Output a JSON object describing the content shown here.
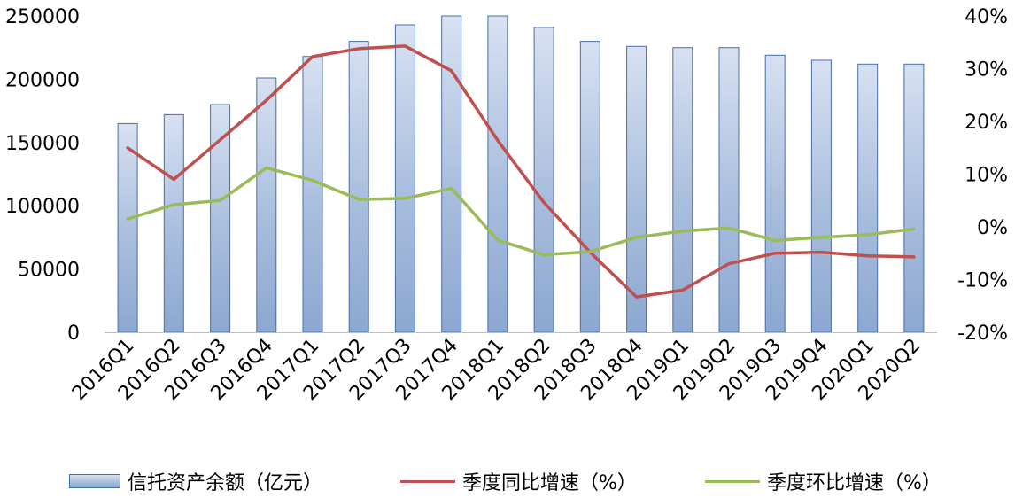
{
  "chart_data": {
    "type": "bar+line",
    "categories": [
      "2016Q1",
      "2016Q2",
      "2016Q3",
      "2016Q4",
      "2017Q1",
      "2017Q2",
      "2017Q3",
      "2017Q4",
      "2018Q1",
      "2018Q2",
      "2018Q3",
      "2018Q4",
      "2019Q1",
      "2019Q2",
      "2019Q3",
      "2019Q4",
      "2020Q1",
      "2020Q2"
    ],
    "series": [
      {
        "name": "信托资产余额（亿元）",
        "type": "bar",
        "axis": "left",
        "color": "#8fa9d2",
        "values": [
          165000,
          172000,
          180000,
          201000,
          218000,
          230000,
          243000,
          250000,
          250000,
          241000,
          230000,
          226000,
          225000,
          225000,
          219000,
          215000,
          212000,
          212000
        ]
      },
      {
        "name": "季度同比增速（%）",
        "type": "line",
        "axis": "right",
        "color": "#c0504d",
        "values": [
          15,
          9,
          16.5,
          24,
          32.3,
          33.8,
          34.3,
          29.6,
          16.4,
          4.6,
          -4.8,
          -13.3,
          -12,
          -7,
          -5,
          -4.8,
          -5.5,
          -5.7
        ]
      },
      {
        "name": "季度环比增速（%）",
        "type": "line",
        "axis": "right",
        "color": "#9bbb59",
        "values": [
          1.5,
          4.2,
          5,
          11.2,
          8.8,
          5.2,
          5.4,
          7.3,
          -2.5,
          -5.3,
          -4.7,
          -2,
          -0.8,
          -0.2,
          -2.6,
          -2,
          -1.5,
          -0.4
        ]
      }
    ],
    "y_left": {
      "min": 0,
      "max": 250000,
      "step": 50000,
      "ticks": [
        "0",
        "50000",
        "100000",
        "150000",
        "200000",
        "250000"
      ]
    },
    "y_right": {
      "min": -20,
      "max": 40,
      "step": 10,
      "ticks": [
        "-20%",
        "-10%",
        "0%",
        "10%",
        "20%",
        "30%",
        "40%"
      ]
    },
    "grid": false,
    "legend_position": "bottom"
  }
}
